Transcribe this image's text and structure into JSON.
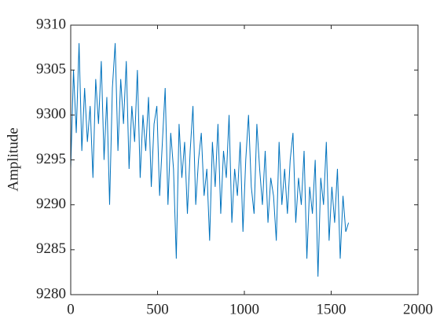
{
  "chart_data": {
    "type": "line",
    "ylabel": "Amplitude",
    "color": "#0072bd",
    "x": [
      0,
      16,
      32,
      48,
      64,
      80,
      96,
      112,
      128,
      144,
      160,
      176,
      192,
      208,
      224,
      240,
      256,
      272,
      288,
      304,
      320,
      336,
      352,
      368,
      384,
      400,
      416,
      432,
      448,
      464,
      480,
      496,
      512,
      528,
      544,
      560,
      576,
      592,
      608,
      624,
      640,
      656,
      672,
      688,
      704,
      720,
      736,
      752,
      768,
      784,
      800,
      816,
      832,
      848,
      864,
      880,
      896,
      912,
      928,
      944,
      960,
      976,
      992,
      1008,
      1024,
      1040,
      1056,
      1072,
      1088,
      1104,
      1120,
      1136,
      1152,
      1168,
      1184,
      1200,
      1216,
      1232,
      1248,
      1264,
      1280,
      1296,
      1312,
      1328,
      1344,
      1360,
      1376,
      1392,
      1408,
      1424,
      1440,
      1456,
      1472,
      1488,
      1504,
      1520,
      1536,
      1552,
      1568,
      1584,
      1600
    ],
    "values": [
      9294,
      9305,
      9298,
      9308,
      9296,
      9303,
      9297,
      9301,
      9293,
      9304,
      9299,
      9306,
      9295,
      9302,
      9290,
      9303,
      9308,
      9296,
      9304,
      9299,
      9306,
      9294,
      9301,
      9297,
      9305,
      9293,
      9300,
      9296,
      9302,
      9292,
      9299,
      9301,
      9291,
      9297,
      9303,
      9290,
      9298,
      9294,
      9284,
      9299,
      9293,
      9297,
      9289,
      9296,
      9301,
      9290,
      9295,
      9298,
      9291,
      9294,
      9286,
      9297,
      9292,
      9299,
      9289,
      9296,
      9293,
      9300,
      9288,
      9294,
      9291,
      9297,
      9287,
      9295,
      9300,
      9292,
      9289,
      9299,
      9294,
      9290,
      9296,
      9288,
      9293,
      9291,
      9286,
      9297,
      9290,
      9294,
      9289,
      9295,
      9298,
      9288,
      9293,
      9290,
      9296,
      9284,
      9292,
      9289,
      9295,
      9282,
      9293,
      9290,
      9297,
      9286,
      9292,
      9288,
      9294,
      9284,
      9291,
      9287,
      9288
    ],
    "xlim": [
      0,
      2000
    ],
    "xticks": [
      0,
      500,
      1000,
      1500,
      2000
    ],
    "ylim": [
      9280,
      9310
    ],
    "yticks": [
      9280,
      9285,
      9290,
      9295,
      9300,
      9305,
      9310
    ]
  }
}
